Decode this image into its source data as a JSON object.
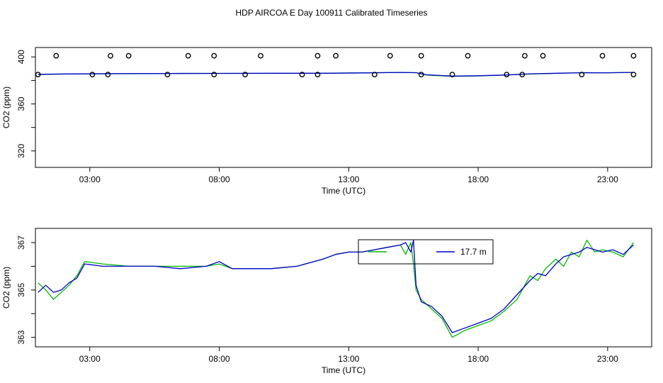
{
  "title": "HDP AIRCOA E  Day 100911  Calibrated Timeseries",
  "colors": {
    "green": "#00bb00",
    "blue": "#0000cc",
    "black": "#000000"
  },
  "chart_data": [
    {
      "type": "line",
      "xlabel": "Time (UTC)",
      "ylabel": "CO2 (ppm)",
      "xlim": [
        0.9,
        24.7
      ],
      "ylim": [
        306,
        408
      ],
      "x_ticks": [
        3,
        8,
        13,
        18,
        23
      ],
      "x_tick_labels": [
        "03:00",
        "08:00",
        "13:00",
        "18:00",
        "23:00"
      ],
      "y_ticks": [
        320,
        340,
        360,
        380,
        400
      ],
      "y_tick_labels": [
        "320",
        "",
        "360",
        "",
        "400"
      ],
      "series": [
        {
          "color": "green",
          "x": [
            1.0,
            2.0,
            4.0,
            6.0,
            8.0,
            10.0,
            12.0,
            13.5,
            15.0,
            15.6,
            16.0,
            17.0,
            18.0,
            19.0,
            20.0,
            21.0,
            22.0,
            23.0,
            24.0
          ],
          "values": [
            385.0,
            385.4,
            385.8,
            385.9,
            386.0,
            386.0,
            386.1,
            386.4,
            386.8,
            386.6,
            384.6,
            383.5,
            383.8,
            384.5,
            385.5,
            386.0,
            386.6,
            386.5,
            386.8
          ]
        },
        {
          "color": "blue",
          "x": [
            1.0,
            2.0,
            4.0,
            6.0,
            8.0,
            10.0,
            12.0,
            13.5,
            15.0,
            15.6,
            16.0,
            17.0,
            18.0,
            19.0,
            20.0,
            21.0,
            22.0,
            23.0,
            24.0
          ],
          "values": [
            385.2,
            385.5,
            385.8,
            385.9,
            386.0,
            386.1,
            386.1,
            386.4,
            386.8,
            386.6,
            384.8,
            383.7,
            384.0,
            384.6,
            385.6,
            386.1,
            386.6,
            386.5,
            386.8
          ]
        }
      ],
      "markers": {
        "style": "open-circle",
        "high": {
          "x": [
            1.7,
            3.8,
            4.5,
            6.8,
            7.8,
            9.6,
            11.8,
            12.5,
            14.6,
            15.8,
            17.6,
            19.8,
            20.5,
            22.8,
            24.0
          ],
          "values": [
            401
          ]
        },
        "low": {
          "x": [
            1.0,
            3.1,
            3.7,
            6.0,
            7.8,
            9.0,
            11.2,
            11.8,
            14.0,
            15.8,
            17.0,
            19.1,
            19.7,
            22.0,
            24.0
          ],
          "values": [
            385
          ]
        }
      }
    },
    {
      "type": "line",
      "xlabel": "Time (UTC)",
      "ylabel": "CO2 (ppm)",
      "xlim": [
        0.9,
        24.7
      ],
      "ylim": [
        362.6,
        367.6
      ],
      "x_ticks": [
        3,
        8,
        13,
        18,
        23
      ],
      "x_tick_labels": [
        "03:00",
        "08:00",
        "13:00",
        "18:00",
        "23:00"
      ],
      "y_ticks": [
        363,
        364,
        365,
        366,
        367
      ],
      "y_tick_labels": [
        "363",
        "",
        "365",
        "",
        "367"
      ],
      "legend": {
        "entries": [
          {
            "label": "",
            "color": "green"
          },
          {
            "label": "17.7 m",
            "color": "blue"
          }
        ]
      },
      "series": [
        {
          "color": "green",
          "x": [
            1.0,
            1.3,
            1.6,
            1.9,
            2.2,
            2.5,
            2.8,
            3.5,
            4.5,
            5.5,
            6.5,
            7.5,
            8.0,
            8.5,
            9.0,
            10.0,
            11.0,
            12.0,
            12.5,
            13.0,
            13.5,
            14.0,
            14.5,
            15.0,
            15.2,
            15.4,
            15.5,
            15.6,
            15.8,
            16.2,
            16.6,
            17.0,
            17.5,
            18.0,
            18.5,
            19.0,
            19.5,
            20.0,
            20.3,
            20.6,
            21.0,
            21.3,
            21.6,
            21.9,
            22.2,
            22.5,
            22.8,
            23.2,
            23.6,
            24.0
          ],
          "values": [
            365.3,
            365.0,
            364.6,
            364.9,
            365.2,
            365.6,
            366.2,
            366.1,
            366.0,
            366.0,
            366.0,
            366.0,
            366.1,
            365.9,
            365.9,
            365.9,
            366.0,
            366.3,
            366.5,
            366.6,
            366.6,
            366.7,
            366.8,
            366.9,
            366.5,
            367.0,
            366.1,
            365.0,
            364.6,
            364.2,
            363.8,
            363.0,
            363.3,
            363.5,
            363.7,
            364.1,
            364.6,
            365.6,
            365.4,
            365.9,
            366.3,
            366.0,
            366.6,
            366.4,
            367.1,
            366.6,
            366.7,
            366.6,
            366.4,
            367.0
          ]
        },
        {
          "color": "blue",
          "x": [
            1.0,
            1.3,
            1.6,
            1.9,
            2.2,
            2.5,
            2.8,
            3.5,
            4.5,
            5.5,
            6.5,
            7.5,
            8.0,
            8.5,
            9.0,
            10.0,
            11.0,
            12.0,
            12.5,
            13.0,
            13.5,
            14.0,
            14.5,
            15.0,
            15.2,
            15.4,
            15.5,
            15.6,
            15.8,
            16.2,
            16.6,
            17.0,
            17.5,
            18.0,
            18.5,
            19.0,
            19.5,
            20.0,
            20.3,
            20.6,
            21.0,
            21.3,
            21.6,
            21.9,
            22.2,
            22.5,
            22.8,
            23.2,
            23.6,
            24.0
          ],
          "values": [
            364.9,
            365.2,
            364.9,
            365.0,
            365.3,
            365.5,
            366.1,
            366.0,
            366.0,
            366.0,
            365.9,
            366.0,
            366.2,
            365.9,
            365.9,
            365.9,
            366.0,
            366.3,
            366.5,
            366.6,
            366.6,
            366.7,
            366.8,
            366.9,
            367.0,
            366.6,
            367.1,
            365.2,
            364.5,
            364.3,
            363.9,
            363.2,
            363.4,
            363.6,
            363.8,
            364.2,
            364.8,
            365.4,
            365.7,
            365.6,
            366.1,
            366.4,
            366.5,
            366.6,
            366.8,
            366.7,
            366.6,
            366.7,
            366.5,
            366.9
          ]
        }
      ]
    }
  ]
}
